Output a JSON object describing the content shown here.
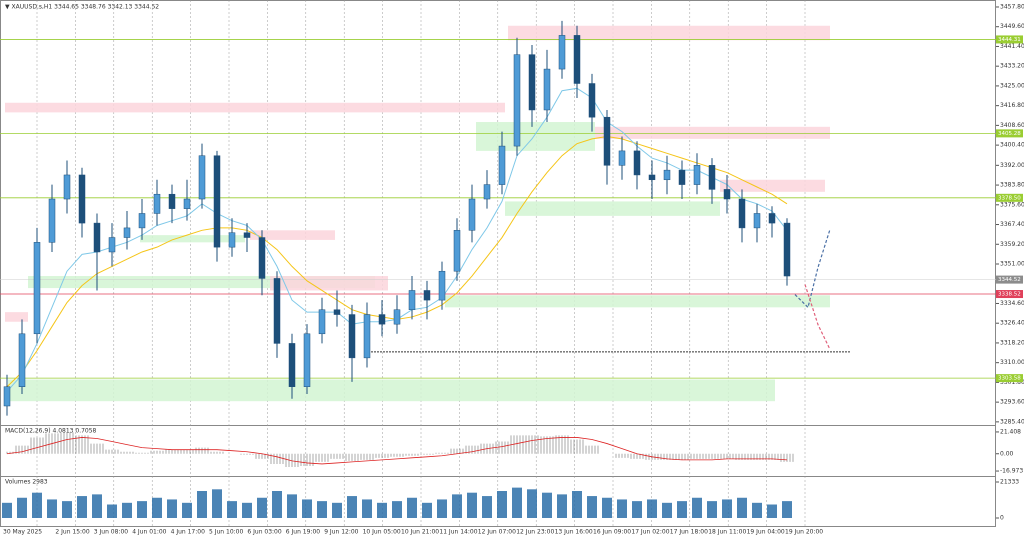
{
  "chart_data": {
    "type": "candlestick",
    "header": "▼ XAUUSD.s,H1  3344.65 3348.76 3342.13 3344.52",
    "ylim": [
      3284.1,
      3460.7
    ],
    "yticks": [
      {
        "value": 3457.8,
        "label": "3457.80"
      },
      {
        "value": 3449.6,
        "label": "3449.60"
      },
      {
        "value": 3441.4,
        "label": "3441.40"
      },
      {
        "value": 3433.2,
        "label": "3433.20"
      },
      {
        "value": 3425,
        "label": "3425.00"
      },
      {
        "value": 3416.8,
        "label": "3416.80"
      },
      {
        "value": 3408.6,
        "label": "3408.60"
      },
      {
        "value": 3400.4,
        "label": "3400.40"
      },
      {
        "value": 3392,
        "label": "3392.00"
      },
      {
        "value": 3383.8,
        "label": "3383.80"
      },
      {
        "value": 3375.6,
        "label": "3375.60"
      },
      {
        "value": 3367.4,
        "label": "3367.40"
      },
      {
        "value": 3359.2,
        "label": "3359.20"
      },
      {
        "value": 3351,
        "label": "3351.00"
      },
      {
        "value": 3334.6,
        "label": "3334.60"
      },
      {
        "value": 3326.4,
        "label": "3326.40"
      },
      {
        "value": 3318.2,
        "label": "3318.20"
      },
      {
        "value": 3310,
        "label": "3310.00"
      },
      {
        "value": 3301.8,
        "label": "3301.80"
      },
      {
        "value": 3293.6,
        "label": "3293.60"
      },
      {
        "value": 3285.4,
        "label": "3285.40"
      }
    ],
    "time_labels": [
      "30 May 2025",
      "2 Jun 15:00",
      "3 Jun 08:00",
      "4 Jun 01:00",
      "4 Jun 17:00",
      "5 Jun 10:00",
      "6 Jun 03:00",
      "6 Jun 19:00",
      "9 Jun 12:00",
      "10 Jun 05:00",
      "10 Jun 21:00",
      "11 Jun 14:00",
      "12 Jun 07:00",
      "12 Jun 23:00",
      "13 Jun 16:00",
      "16 Jun 09:00",
      "17 Jun 02:00",
      "17 Jun 18:00",
      "18 Jun 11:00",
      "19 Jun 04:00",
      "19 Jun 20:00"
    ],
    "open": [
      3292,
      3300,
      3322,
      3360,
      3378,
      3388,
      3368,
      3356,
      3362,
      3366,
      3372,
      3380,
      3374,
      3378,
      3396,
      3358,
      3364,
      3362,
      3345,
      3318,
      3300,
      3322,
      3332,
      3330,
      3312,
      3330,
      3326,
      3332,
      3340,
      3336,
      3348,
      3365,
      3378,
      3384,
      3400,
      3438,
      3415,
      3432,
      3446,
      3426,
      3412,
      3392,
      3398,
      3388,
      3386,
      3390,
      3384,
      3392,
      3382,
      3378,
      3366,
      3372,
      3368
    ],
    "high": [
      3305,
      3328,
      3366,
      3384,
      3394,
      3391,
      3372,
      3368,
      3373,
      3378,
      3386,
      3384,
      3386,
      3401,
      3398,
      3370,
      3368,
      3365,
      3348,
      3322,
      3326,
      3337,
      3340,
      3334,
      3335,
      3336,
      3338,
      3346,
      3344,
      3352,
      3370,
      3384,
      3390,
      3406,
      3445,
      3442,
      3440,
      3452,
      3450,
      3430,
      3415,
      3404,
      3402,
      3394,
      3396,
      3394,
      3397,
      3395,
      3388,
      3382,
      3376,
      3375,
      3370
    ],
    "low": [
      3288,
      3297,
      3318,
      3356,
      3372,
      3362,
      3340,
      3350,
      3357,
      3361,
      3367,
      3368,
      3369,
      3374,
      3352,
      3354,
      3356,
      3338,
      3312,
      3295,
      3297,
      3318,
      3325,
      3302,
      3308,
      3321,
      3322,
      3328,
      3328,
      3332,
      3344,
      3360,
      3374,
      3380,
      3396,
      3408,
      3410,
      3428,
      3420,
      3406,
      3384,
      3386,
      3382,
      3378,
      3380,
      3378,
      3380,
      3376,
      3372,
      3360,
      3360,
      3362,
      3342
    ],
    "close": [
      3300,
      3322,
      3360,
      3378,
      3388,
      3368,
      3356,
      3362,
      3366,
      3372,
      3380,
      3374,
      3378,
      3396,
      3358,
      3364,
      3362,
      3345,
      3318,
      3300,
      3322,
      3332,
      3330,
      3312,
      3330,
      3326,
      3332,
      3340,
      3336,
      3348,
      3365,
      3378,
      3384,
      3400,
      3438,
      3415,
      3432,
      3446,
      3426,
      3412,
      3392,
      3398,
      3388,
      3386,
      3390,
      3384,
      3392,
      3382,
      3378,
      3366,
      3372,
      3368,
      3346
    ],
    "moving_averages": [
      {
        "color": "#f5c518",
        "values": [
          3300,
          3306,
          3315,
          3325,
          3335,
          3342,
          3347,
          3350,
          3353,
          3356,
          3358,
          3361,
          3363,
          3365,
          3366,
          3366,
          3365,
          3362,
          3357,
          3350,
          3344,
          3340,
          3336,
          3332,
          3330,
          3329,
          3328,
          3329,
          3331,
          3334,
          3339,
          3346,
          3354,
          3362,
          3372,
          3381,
          3389,
          3396,
          3401,
          3403,
          3404,
          3403,
          3401,
          3399,
          3397,
          3395,
          3393,
          3391,
          3389,
          3386,
          3383,
          3380,
          3376
        ]
      },
      {
        "color": "#7fc8e8",
        "values": [
          3298,
          3305,
          3318,
          3333,
          3348,
          3355,
          3356,
          3358,
          3360,
          3363,
          3367,
          3369,
          3371,
          3376,
          3372,
          3369,
          3367,
          3361,
          3350,
          3336,
          3331,
          3331,
          3331,
          3326,
          3327,
          3327,
          3328,
          3332,
          3333,
          3337,
          3346,
          3357,
          3366,
          3377,
          3396,
          3403,
          3412,
          3423,
          3424,
          3420,
          3410,
          3406,
          3400,
          3395,
          3393,
          3390,
          3390,
          3387,
          3384,
          3378,
          3376,
          3373,
          3365
        ]
      }
    ],
    "zones": [
      {
        "top": 3450,
        "bottom": 3444,
        "color": "#fbd5dc"
      },
      {
        "top": 3418,
        "bottom": 3414,
        "color": "#fbd5dc"
      },
      {
        "top": 3410,
        "bottom": 3398,
        "color": "#d2f5d2"
      },
      {
        "top": 3408,
        "bottom": 3403,
        "color": "#fbd5dc"
      },
      {
        "top": 3386,
        "bottom": 3381,
        "color": "#fbd5dc"
      },
      {
        "top": 3377,
        "bottom": 3371,
        "color": "#d2f5d2"
      },
      {
        "top": 3365,
        "bottom": 3361,
        "color": "#fbd5dc"
      },
      {
        "top": 3363,
        "bottom": 3360,
        "color": "#d2f5d2"
      },
      {
        "top": 3346,
        "bottom": 3341,
        "color": "#d2f5d2"
      },
      {
        "top": 3346,
        "bottom": 3340,
        "color": "#fbd5dc"
      },
      {
        "top": 3331,
        "bottom": 3327,
        "color": "#fbd5dc"
      },
      {
        "top": 3338,
        "bottom": 3333,
        "color": "#d2f5d2"
      },
      {
        "top": 3303,
        "bottom": 3294,
        "color": "#d2f5d2"
      }
    ],
    "levels": [
      {
        "value": 3444.31,
        "label": "3444.31",
        "color": "#9acd32"
      },
      {
        "value": 3405.28,
        "label": "3405.28",
        "color": "#9acd32"
      },
      {
        "value": 3378.5,
        "label": "3378.50",
        "color": "#9acd32"
      },
      {
        "value": 3338.52,
        "label": "3338.52",
        "color": "#e0405a"
      },
      {
        "value": 3303.58,
        "label": "3303.58",
        "color": "#9acd32"
      }
    ],
    "current_price": {
      "value": 3344.52,
      "label": "3344.52",
      "color": "#8c8c8c"
    },
    "support_line": 3314.5,
    "forecast": [
      {
        "color": "#4a6fa5",
        "values": [
          3338.3,
          3333,
          3349.6,
          3365.4
        ]
      },
      {
        "color": "#e0607a",
        "values": [
          3342.5,
          3325.8,
          3315.5
        ]
      }
    ],
    "macd": {
      "label": "MACD(12,26,9) 4.0813 0.7058",
      "ylim": [
        -21.84,
        27.24
      ],
      "yticks": [
        {
          "value": 21.408,
          "label": "21.408"
        },
        {
          "value": 0,
          "label": "0.00"
        },
        {
          "value": -16.973,
          "label": "-16.973"
        }
      ],
      "histogram": [
        2,
        8,
        16,
        20,
        21,
        18,
        10,
        4,
        2,
        1,
        3,
        4,
        4,
        6,
        2,
        0,
        -1,
        -5,
        -10,
        -13,
        -12,
        -8,
        -5,
        -7,
        -6,
        -4,
        -3,
        -2,
        -1,
        1,
        5,
        8,
        10,
        12,
        18,
        18,
        17,
        18,
        14,
        8,
        0,
        -4,
        -5,
        -6,
        -6,
        -6,
        -5,
        -5,
        -5,
        -6,
        -6,
        -6,
        -8
      ],
      "signal": [
        0,
        2,
        6,
        10,
        14,
        16,
        15,
        12,
        9,
        6,
        5,
        4,
        4,
        4,
        4,
        3,
        2,
        0,
        -3,
        -7,
        -9,
        -10,
        -9,
        -8,
        -7,
        -6,
        -5,
        -4,
        -3,
        -2,
        0,
        2,
        5,
        7,
        10,
        13,
        15,
        16,
        16,
        14,
        10,
        5,
        0,
        -3,
        -5,
        -6,
        -6,
        -6,
        -5,
        -5,
        -5,
        -5,
        -6
      ]
    },
    "volumes": {
      "label": "Volumes 2983",
      "ylim": [
        -5333,
        24296
      ],
      "yticks": [
        21333,
        0
      ],
      "values": [
        9000,
        12000,
        15000,
        11000,
        10000,
        13000,
        14000,
        8000,
        9000,
        10000,
        12000,
        11000,
        9000,
        16000,
        17000,
        10000,
        9000,
        12000,
        16000,
        14000,
        11000,
        10000,
        9000,
        13000,
        11000,
        9000,
        10000,
        12000,
        9000,
        11000,
        14000,
        15000,
        13000,
        16000,
        18000,
        17000,
        15000,
        14000,
        16000,
        13000,
        12000,
        11000,
        10000,
        11000,
        9000,
        10000,
        12000,
        10000,
        11000,
        12000,
        9000,
        8000,
        10000
      ]
    }
  }
}
